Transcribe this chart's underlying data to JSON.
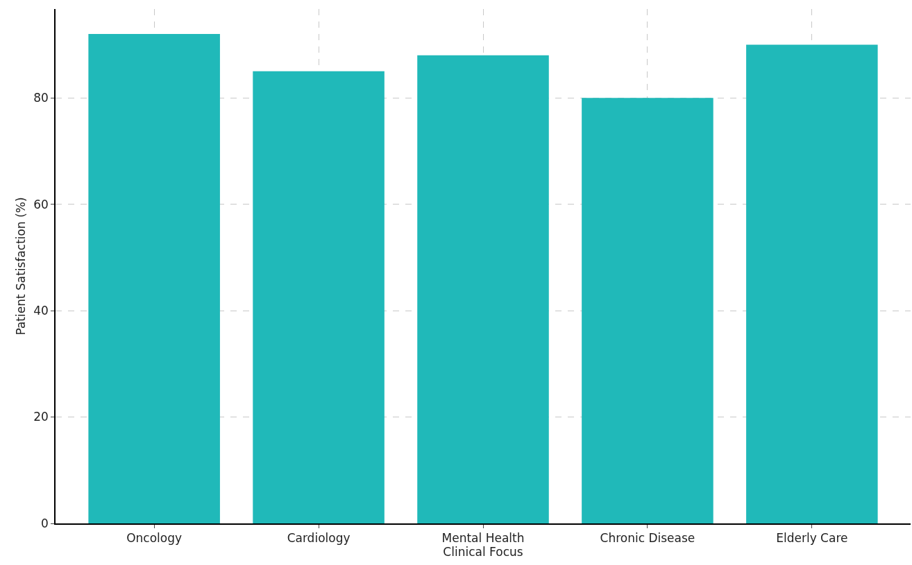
{
  "chart_data": {
    "type": "bar",
    "xlabel": "Clinical Focus",
    "ylabel": "Patient Satisfaction (%)",
    "categories": [
      "Oncology",
      "Cardiology",
      "Mental Health",
      "Chronic Disease",
      "Elderly Care"
    ],
    "values": [
      92,
      85,
      88,
      80,
      90
    ],
    "color": "#20b9b9",
    "ylim": [
      0,
      96.7
    ],
    "yticks": [
      0,
      20,
      40,
      60,
      80
    ],
    "grid": true,
    "line_style": "dashed"
  }
}
